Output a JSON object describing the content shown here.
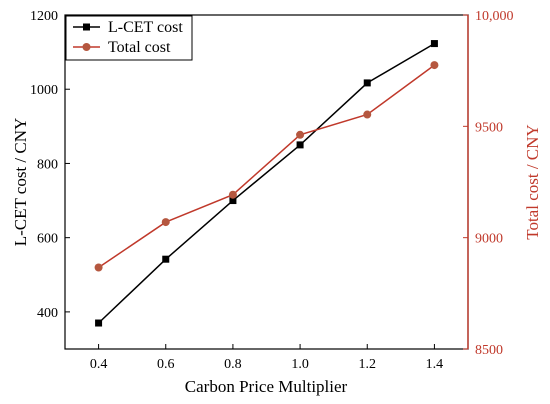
{
  "chart_data": {
    "type": "line",
    "x": [
      0.4,
      0.6,
      0.8,
      1.0,
      1.2,
      1.4
    ],
    "xlabel": "Carbon Price Multiplier",
    "xlim": [
      0.3,
      1.5
    ],
    "xticks": [
      "0.4",
      "0.6",
      "0.8",
      "1.0",
      "1.2",
      "1.4"
    ],
    "y_left": {
      "label": "L-CET cost / CNY",
      "lim": [
        300,
        1200
      ],
      "ticks": [
        "400",
        "600",
        "800",
        "1000",
        "1200"
      ],
      "color": "#000000"
    },
    "y_right": {
      "label": "Total cost / CNY",
      "lim": [
        8500,
        10000
      ],
      "ticks": [
        "8500",
        "9000",
        "9500",
        "10,000"
      ],
      "color": "#c0392b"
    },
    "series": [
      {
        "name": "L-CET cost",
        "axis": "left",
        "marker": "square",
        "color": "#000000",
        "values": [
          370,
          542,
          700,
          850,
          1017,
          1123
        ]
      },
      {
        "name": "Total cost",
        "axis": "right",
        "marker": "circle",
        "color": "#c0392b",
        "marker_color": "#b5573f",
        "values": [
          8866,
          9070,
          9193,
          9462,
          9553,
          9775
        ]
      }
    ],
    "legend": "top-left",
    "grid": false
  }
}
